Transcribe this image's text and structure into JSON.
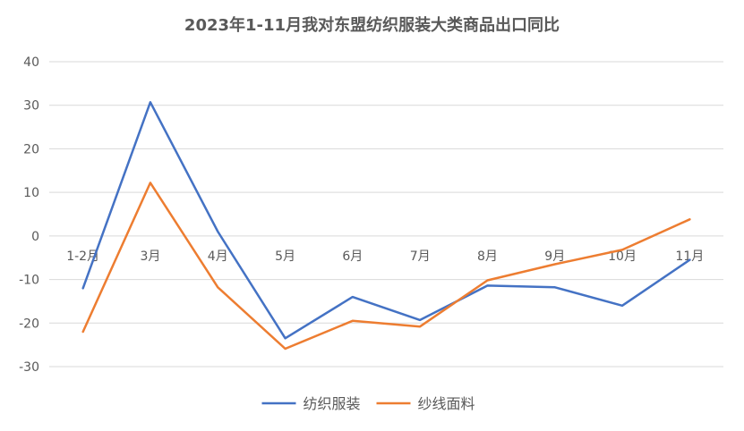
{
  "chart_data": {
    "type": "line",
    "title": "2023年1-11月我对东盟纺织服装大类商品出口同比",
    "xlabel": "",
    "ylabel": "",
    "categories": [
      "1-2月",
      "3月",
      "4月",
      "5月",
      "6月",
      "7月",
      "8月",
      "9月",
      "10月",
      "11月"
    ],
    "ylim": [
      -30,
      40
    ],
    "yticks": [
      -30,
      -20,
      -10,
      0,
      10,
      20,
      30,
      40
    ],
    "grid": true,
    "legend": "bottom",
    "series": [
      {
        "name": "纺织服装",
        "color": "#4472C4",
        "values": [
          -12.0,
          30.7,
          1.0,
          -23.5,
          -14.0,
          -19.3,
          -11.4,
          -11.8,
          -16.0,
          -5.5
        ]
      },
      {
        "name": "纱线面料",
        "color": "#ED7D31",
        "values": [
          -22.0,
          12.2,
          -11.8,
          -25.9,
          -19.5,
          -20.8,
          -10.2,
          -6.5,
          -3.2,
          3.8
        ]
      }
    ]
  }
}
